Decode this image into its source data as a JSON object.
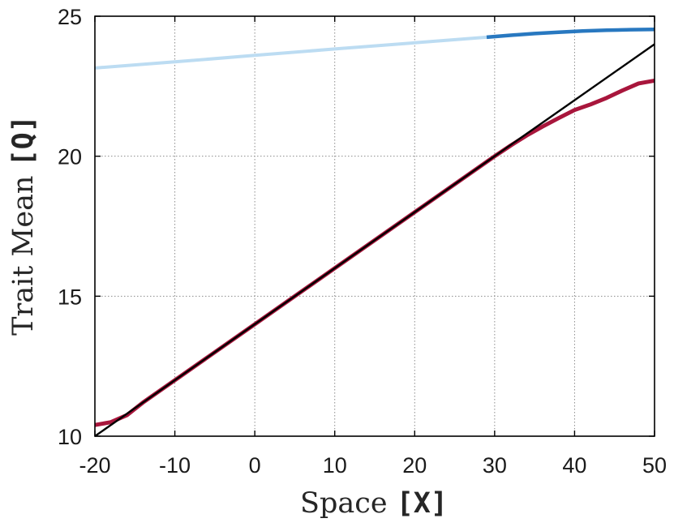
{
  "chart_data": {
    "type": "line",
    "xlabel": "Space ",
    "xlabel_unit": "[X]",
    "ylabel": "Trait Mean ",
    "ylabel_unit": "[Q]",
    "xlim": [
      -20,
      50
    ],
    "ylim": [
      10,
      25
    ],
    "xticks": [
      -20,
      -10,
      0,
      10,
      20,
      30,
      40,
      50
    ],
    "yticks": [
      10,
      15,
      20,
      25
    ],
    "grid": true,
    "series": [
      {
        "color": "#bcdcf2",
        "stroke_width": 4,
        "x": [
          -20,
          -10,
          0,
          10,
          20,
          29
        ],
        "y": [
          23.15,
          23.37,
          23.6,
          23.83,
          24.05,
          24.25
        ]
      },
      {
        "color": "#2878c0",
        "stroke_width": 4.5,
        "x": [
          29,
          32,
          35,
          38,
          41,
          44,
          47,
          50
        ],
        "y": [
          24.25,
          24.32,
          24.38,
          24.43,
          24.47,
          24.5,
          24.52,
          24.53
        ]
      },
      {
        "color": "#a8163c",
        "stroke_width": 5,
        "x": [
          -20,
          -18,
          -16,
          -14,
          -12,
          -10,
          0,
          10,
          20,
          30,
          32,
          34,
          36,
          38,
          40,
          42,
          44,
          46,
          48,
          50
        ],
        "y": [
          10.4,
          10.5,
          10.75,
          11.2,
          11.6,
          12.0,
          14.0,
          16.0,
          18.0,
          20.0,
          20.38,
          20.74,
          21.06,
          21.36,
          21.65,
          21.85,
          22.08,
          22.35,
          22.6,
          22.7
        ]
      },
      {
        "color": "#000000",
        "stroke_width": 2.4,
        "x": [
          -20,
          50
        ],
        "y": [
          10.0,
          24.0
        ]
      }
    ]
  }
}
